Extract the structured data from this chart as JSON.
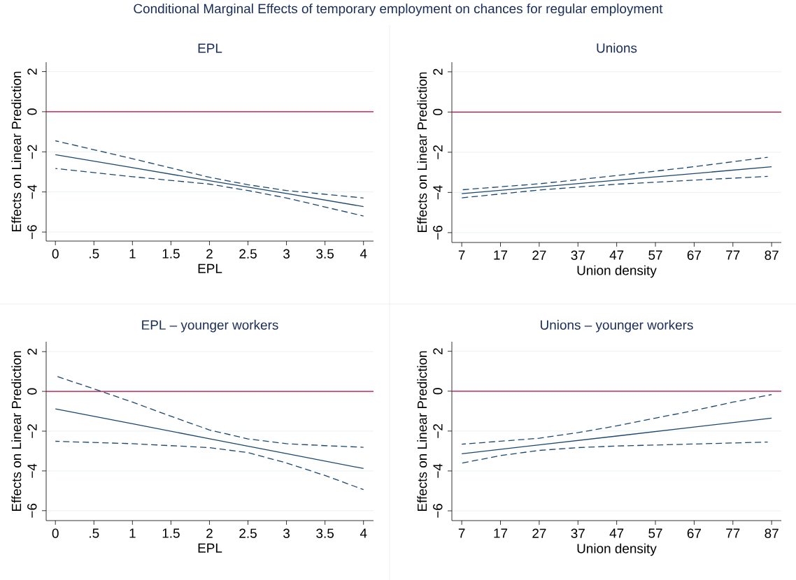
{
  "chart_data": [
    {
      "type": "line",
      "title": "EPL",
      "xlabel": "EPL",
      "ylabel": "Effects on Linear Prediction",
      "annotations": [
        "Conditional Marginal Effects of temporary employment on chances for regular employment"
      ],
      "xlim": [
        -0.12,
        4.13
      ],
      "ylim": [
        -6.45,
        2.47
      ],
      "xticks": [
        0,
        {
          "value": 0.5,
          "label": ".5"
        },
        1,
        1.5,
        2,
        2.5,
        3,
        3.5,
        4
      ],
      "yticks": [
        {
          "value": -6,
          "label": "−6"
        },
        {
          "value": -4,
          "label": "−4"
        },
        {
          "value": -2,
          "label": "−2"
        },
        0,
        2
      ],
      "grid": "y",
      "ref_lines": [
        {
          "axis": "y",
          "value": 0,
          "color": "#c10534"
        }
      ],
      "series": [
        {
          "color": "#1a476f",
          "line_style": "solid",
          "x": [
            0,
            1,
            2,
            3,
            4
          ],
          "values": [
            -2.14,
            -2.79,
            -3.44,
            -4.08,
            -4.73
          ]
        },
        {
          "color": "#1a476f",
          "line_style": "dashed",
          "x": [
            0,
            1,
            2,
            2.5,
            3,
            4
          ],
          "values": [
            -1.45,
            -2.34,
            -3.27,
            -3.64,
            -3.93,
            -4.3
          ]
        },
        {
          "color": "#1a476f",
          "line_style": "dashed",
          "x": [
            0,
            1,
            2,
            2.5,
            3,
            4
          ],
          "values": [
            -2.83,
            -3.24,
            -3.61,
            -3.93,
            -4.3,
            -5.2
          ]
        }
      ]
    },
    {
      "type": "line",
      "title": "Unions",
      "xlabel": "Union density",
      "ylabel": "Effects on Linear Prediction",
      "xlim": [
        4.45,
        89.5
      ],
      "ylim": [
        -6.49,
        2.48
      ],
      "xticks": [
        7,
        17,
        27,
        37,
        47,
        57,
        67,
        77,
        87
      ],
      "yticks": [
        {
          "value": -6,
          "label": "−6"
        },
        {
          "value": -4,
          "label": "−4"
        },
        {
          "value": -2,
          "label": "−2"
        },
        0,
        2
      ],
      "grid": "y",
      "ref_lines": [
        {
          "axis": "y",
          "value": 0,
          "color": "#c10534"
        }
      ],
      "series": [
        {
          "color": "#1a476f",
          "line_style": "solid",
          "x": [
            7,
            27,
            47,
            67,
            87
          ],
          "values": [
            -4.06,
            -3.73,
            -3.39,
            -3.06,
            -2.72
          ]
        },
        {
          "color": "#1a476f",
          "line_style": "dashed",
          "x": [
            7,
            27,
            47,
            67,
            86
          ],
          "values": [
            -3.87,
            -3.57,
            -3.16,
            -2.72,
            -2.25
          ]
        },
        {
          "color": "#1a476f",
          "line_style": "dashed",
          "x": [
            7,
            27,
            47,
            67,
            86
          ],
          "values": [
            -4.27,
            -3.88,
            -3.59,
            -3.39,
            -3.2
          ]
        }
      ]
    },
    {
      "type": "line",
      "title": "EPL – younger workers",
      "xlabel": "EPL",
      "ylabel": "Effects on Linear Prediction",
      "xlim": [
        -0.12,
        4.13
      ],
      "ylim": [
        -6.5,
        2.5
      ],
      "xticks": [
        0,
        {
          "value": 0.5,
          "label": ".5"
        },
        1,
        1.5,
        2,
        2.5,
        3,
        3.5,
        4
      ],
      "yticks": [
        {
          "value": -6,
          "label": "−6"
        },
        {
          "value": -4,
          "label": "−4"
        },
        {
          "value": -2,
          "label": "−2"
        },
        0,
        2
      ],
      "grid": "y",
      "ref_lines": [
        {
          "axis": "y",
          "value": 0,
          "color": "#c10534"
        }
      ],
      "series": [
        {
          "color": "#1a476f",
          "line_style": "solid",
          "x": [
            0,
            1,
            2,
            3,
            4
          ],
          "values": [
            -0.88,
            -1.63,
            -2.38,
            -3.13,
            -3.88
          ]
        },
        {
          "color": "#1a476f",
          "line_style": "dashed",
          "x": [
            0,
            0.5,
            1,
            1.5,
            2,
            2.5,
            3,
            3.5,
            4
          ],
          "values": [
            0.78,
            0.13,
            -0.54,
            -1.25,
            -1.94,
            -2.39,
            -2.63,
            -2.73,
            -2.81
          ]
        },
        {
          "color": "#1a476f",
          "line_style": "dashed",
          "x": [
            0,
            1,
            2,
            2.5,
            3,
            3.5,
            4
          ],
          "values": [
            -2.51,
            -2.63,
            -2.83,
            -3.08,
            -3.6,
            -4.23,
            -4.94
          ]
        }
      ]
    },
    {
      "type": "line",
      "title": "Unions – younger workers",
      "xlabel": "Union density",
      "ylabel": "Effects on Linear Prediction",
      "xlim": [
        4.45,
        89.5
      ],
      "ylim": [
        -6.49,
        2.48
      ],
      "xticks": [
        7,
        17,
        27,
        37,
        47,
        57,
        67,
        77,
        87
      ],
      "yticks": [
        {
          "value": -6,
          "label": "−6"
        },
        {
          "value": -4,
          "label": "−4"
        },
        {
          "value": -2,
          "label": "−2"
        },
        0,
        2
      ],
      "grid": "y",
      "ref_lines": [
        {
          "axis": "y",
          "value": 0,
          "color": "#c10534"
        }
      ],
      "series": [
        {
          "color": "#1a476f",
          "line_style": "solid",
          "x": [
            7,
            27,
            47,
            67,
            87
          ],
          "values": [
            -3.14,
            -2.69,
            -2.25,
            -1.8,
            -1.35
          ]
        },
        {
          "color": "#1a476f",
          "line_style": "dashed",
          "x": [
            7,
            27,
            37,
            47,
            57,
            67,
            77,
            87
          ],
          "values": [
            -2.66,
            -2.36,
            -2.08,
            -1.74,
            -1.35,
            -0.97,
            -0.55,
            -0.17
          ]
        },
        {
          "color": "#1a476f",
          "line_style": "dashed",
          "x": [
            7,
            17,
            27,
            37,
            47,
            67,
            86
          ],
          "values": [
            -3.61,
            -3.23,
            -2.97,
            -2.83,
            -2.75,
            -2.65,
            -2.55
          ]
        }
      ]
    }
  ]
}
